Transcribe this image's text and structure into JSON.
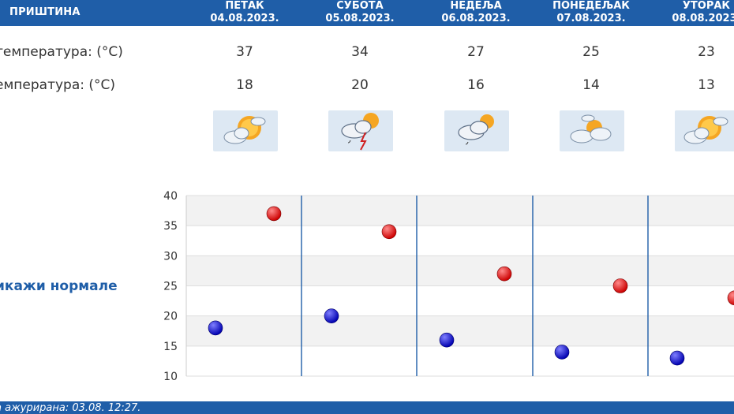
{
  "header": {
    "city": "ПРИШТИНА",
    "days": [
      {
        "name": "ПЕТАК",
        "date": "04.08.2023."
      },
      {
        "name": "СУБОТА",
        "date": "05.08.2023."
      },
      {
        "name": "НЕДЕЉА",
        "date": "06.08.2023."
      },
      {
        "name": "ПОНЕДЕЉАК",
        "date": "07.08.2023."
      },
      {
        "name": "УТОРАК",
        "date": "08.08.2023."
      }
    ]
  },
  "rows": {
    "max_label": "температура: (°C)",
    "min_label": "емпература: (°C)",
    "icon_label": ":",
    "max": [
      "37",
      "34",
      "27",
      "25",
      "23"
    ],
    "min": [
      "18",
      "20",
      "16",
      "14",
      "13"
    ],
    "icons": [
      "sun-behind-clouds-icon",
      "thunderstorm-rain-icon",
      "cloud-rain-icon",
      "partly-cloudy-icon",
      "sun-behind-clouds-icon"
    ]
  },
  "normals_link": "икажи нормале",
  "footer": {
    "updated": "а ажурирана:  03.08.  12:27."
  },
  "colors": {
    "brand": "#1f5ea8",
    "max_dot": "#cc0000",
    "min_dot": "#0000b0"
  },
  "chart_data": {
    "type": "scatter",
    "y_ticks": [
      "40",
      "35",
      "30",
      "25",
      "20",
      "15",
      "10"
    ],
    "ylim": [
      10,
      40
    ],
    "grid": true,
    "series": [
      {
        "values": [
          37,
          34,
          27,
          25,
          23
        ]
      },
      {
        "values": [
          18,
          20,
          16,
          14,
          13
        ]
      }
    ]
  }
}
